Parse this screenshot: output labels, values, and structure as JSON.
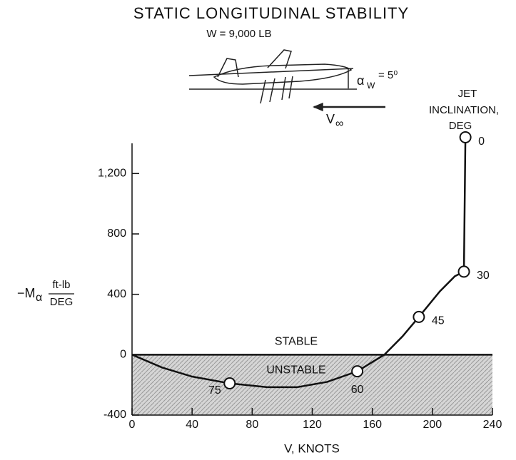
{
  "chart_data": {
    "type": "line",
    "title": "STATIC LONGITUDINAL STABILITY",
    "subtitle": "W = 9,000 LB",
    "angle_symbol": "α",
    "angle_subscript": "W",
    "angle_value": "= 5⁰",
    "speed_symbol": "V",
    "speed_subscript": "∞",
    "legend_title": [
      "JET",
      "INCLINATION,",
      "DEG"
    ],
    "region_labels": {
      "upper": "STABLE",
      "lower": "UNSTABLE"
    },
    "x_label": "V, KNOTS",
    "y_label": {
      "symbol": "−M",
      "subscript": "α",
      "numerator": "ft-lb",
      "denominator": "DEG"
    },
    "xlim": [
      0,
      240
    ],
    "xticks": [
      0,
      40,
      80,
      120,
      160,
      200,
      240
    ],
    "ylim": [
      -400,
      1400
    ],
    "yticks": [
      -400,
      0,
      400,
      800,
      {
        "value": 1200,
        "label": "1,200"
      }
    ],
    "color": "#111111",
    "shade_color": "#bdbdbd",
    "curve": {
      "x": [
        0,
        20,
        40,
        65,
        90,
        110,
        130,
        150,
        168,
        180,
        191,
        205,
        215,
        221,
        222
      ],
      "values": [
        0,
        -85,
        -145,
        -190,
        -215,
        -215,
        -180,
        -110,
        0,
        120,
        250,
        420,
        520,
        550,
        1440
      ]
    },
    "points": {
      "x": [
        222,
        221,
        191,
        150,
        65
      ],
      "values": [
        1440,
        550,
        250,
        -110,
        -190
      ],
      "labels": [
        0,
        30,
        45,
        60,
        75
      ]
    }
  }
}
